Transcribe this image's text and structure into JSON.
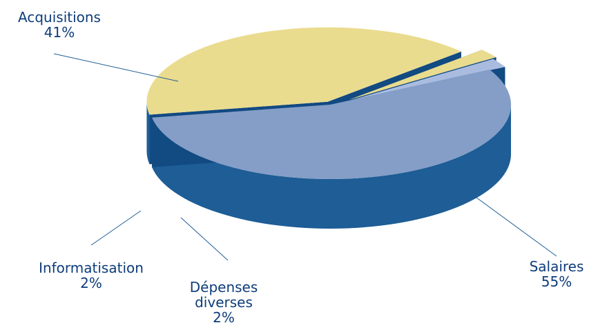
{
  "chart_data": {
    "type": "pie",
    "title": "",
    "categories": [
      "Salaires",
      "Acquisitions",
      "Informatisation",
      "Dépenses diverses"
    ],
    "values": [
      55,
      41,
      2,
      2
    ],
    "labels": [
      {
        "name_lines": [
          "Salaires"
        ],
        "pct": "55%"
      },
      {
        "name_lines": [
          "Acquisitions"
        ],
        "pct": "41%"
      },
      {
        "name_lines": [
          "Informatisation"
        ],
        "pct": "2%"
      },
      {
        "name_lines": [
          "Dépenses",
          "diverses"
        ],
        "pct": "2%"
      }
    ],
    "colors": {
      "Salaires": "#849ec7",
      "Acquisitions": "#eadc8e",
      "Informatisation": "#eadc8e",
      "Dépenses diverses": "#a9bce0",
      "side": "#1e5d96",
      "side_dark": "#124a82",
      "label_text": "#0d3c7a"
    },
    "style": "3d-exploded"
  }
}
